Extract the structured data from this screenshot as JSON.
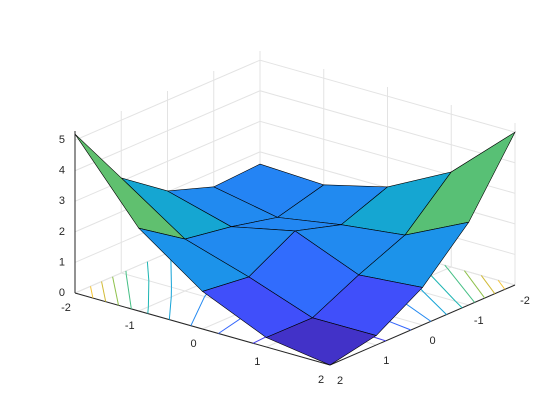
{
  "chart_data": {
    "type": "surface",
    "x": [
      -2,
      -1,
      0,
      1,
      2
    ],
    "y": [
      -2,
      -1,
      0,
      1,
      2
    ],
    "z": [
      [
        1.6,
        1.51,
        2.03,
        3.11,
        5.0
      ],
      [
        1.51,
        1.1,
        1.45,
        1.7,
        2.71
      ],
      [
        2.03,
        1.45,
        1.9,
        1.05,
        1.23
      ],
      [
        3.11,
        1.7,
        1.05,
        0.3,
        0.31
      ],
      [
        5.2,
        2.71,
        1.23,
        0.31,
        0
      ]
    ],
    "xlim": [
      -2,
      2
    ],
    "ylim": [
      -2,
      2
    ],
    "zlim": [
      0,
      5.3
    ],
    "xticks": [
      -2,
      -1,
      0,
      1,
      2
    ],
    "yticks": [
      -2,
      -1,
      0,
      1,
      2
    ],
    "zticks": [
      0,
      1,
      2,
      3,
      4,
      5
    ],
    "contour_levels": [
      0.5,
      1,
      1.5,
      2,
      2.5,
      3,
      3.5,
      4,
      4.5
    ],
    "grid": true,
    "colormap": [
      "#3e26a8",
      "#4743f8",
      "#2d73fe",
      "#1a97e8",
      "#12b0c3",
      "#35bf92",
      "#8ac14c",
      "#d7b933",
      "#fcc636",
      "#f9fb15"
    ],
    "edge_color": "#000000"
  }
}
